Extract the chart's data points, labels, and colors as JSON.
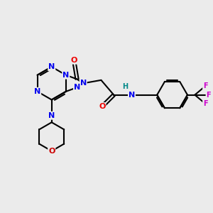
{
  "background_color": "#ebebeb",
  "atom_colors": {
    "N": "#0000ee",
    "O": "#ee0000",
    "O_morph": "#cc0000",
    "F": "#cc00cc",
    "C": "#000000",
    "H": "#008888"
  },
  "lw": 1.5,
  "fs": 8.0,
  "fs_small": 7.0
}
